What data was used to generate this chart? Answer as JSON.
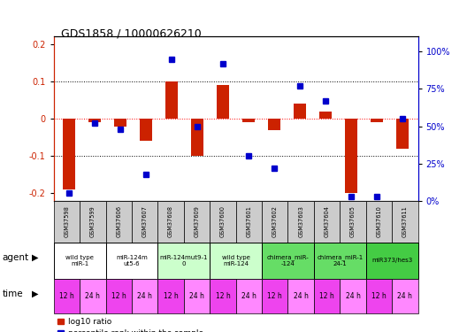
{
  "title": "GDS1858 / 10000626210",
  "samples": [
    "GSM37598",
    "GSM37599",
    "GSM37606",
    "GSM37607",
    "GSM37608",
    "GSM37609",
    "GSM37600",
    "GSM37601",
    "GSM37602",
    "GSM37603",
    "GSM37604",
    "GSM37605",
    "GSM37610",
    "GSM37611"
  ],
  "log10_ratio": [
    -0.19,
    -0.01,
    -0.02,
    -0.06,
    0.1,
    -0.1,
    0.09,
    -0.01,
    -0.03,
    0.04,
    0.02,
    -0.2,
    -0.01,
    -0.08
  ],
  "percentile": [
    5,
    52,
    48,
    18,
    95,
    50,
    92,
    30,
    22,
    77,
    67,
    3,
    3,
    55
  ],
  "agents": [
    {
      "label": "wild type\nmiR-1",
      "start": 0,
      "end": 2,
      "color": "#ffffff"
    },
    {
      "label": "miR-124m\nut5-6",
      "start": 2,
      "end": 4,
      "color": "#ffffff"
    },
    {
      "label": "miR-124mut9-1\n0",
      "start": 4,
      "end": 6,
      "color": "#ccffcc"
    },
    {
      "label": "wild type\nmiR-124",
      "start": 6,
      "end": 8,
      "color": "#ccffcc"
    },
    {
      "label": "chimera_miR-\n-124",
      "start": 8,
      "end": 10,
      "color": "#66dd66"
    },
    {
      "label": "chimera_miR-1\n24-1",
      "start": 10,
      "end": 12,
      "color": "#66dd66"
    },
    {
      "label": "miR373/hes3",
      "start": 12,
      "end": 14,
      "color": "#44cc44"
    }
  ],
  "ylim": [
    -0.22,
    0.22
  ],
  "y2lim": [
    0,
    110
  ],
  "bar_color": "#cc2200",
  "dot_color": "#0000cc",
  "axis_color_left": "#cc2200",
  "axis_color_right": "#0000cc",
  "sample_bg": "#cccccc",
  "yticks_left": [
    -0.2,
    -0.1,
    0.0,
    0.1,
    0.2
  ],
  "ytick_labels_left": [
    "-0.2",
    "-0.1",
    "0",
    "0.1",
    "0.2"
  ],
  "yticks_right": [
    0,
    25,
    50,
    75,
    100
  ],
  "ytick_labels_right": [
    "0%",
    "25%",
    "50%",
    "75%",
    "100%"
  ],
  "time_color1": "#ee44ee",
  "time_color2": "#ff88ff",
  "n_samples": 14,
  "bar_width": 0.5
}
